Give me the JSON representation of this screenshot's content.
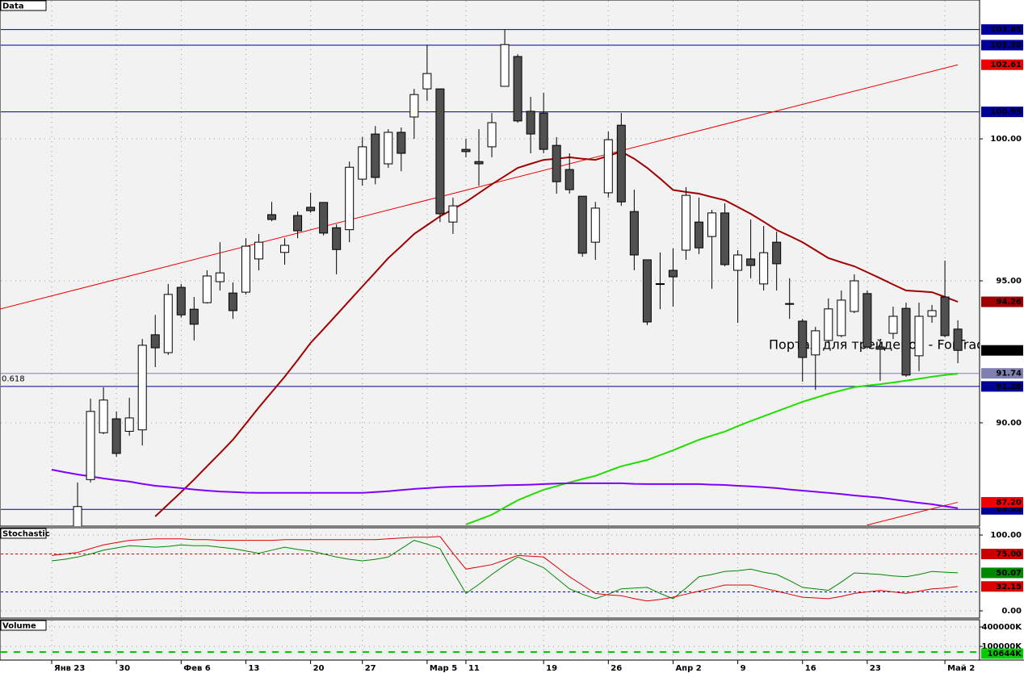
{
  "chart_data": [
    {
      "type": "candlestick",
      "title": "Data",
      "categories": [
        "Янв 23",
        null,
        null,
        null,
        null,
        "30",
        null,
        null,
        null,
        null,
        "Фев 6",
        null,
        null,
        null,
        null,
        "13",
        null,
        null,
        null,
        null,
        "20",
        null,
        null,
        null,
        "27",
        null,
        null,
        null,
        null,
        "Мар 5",
        null,
        null,
        "11",
        null,
        null,
        null,
        null,
        null,
        "19",
        null,
        null,
        null,
        null,
        "26",
        null,
        null,
        null,
        null,
        "Апр 2",
        null,
        null,
        null,
        null,
        "9",
        null,
        null,
        null,
        null,
        "16",
        null,
        null,
        null,
        null,
        "23",
        null,
        null,
        null,
        null,
        null,
        "Май 2",
        null
      ],
      "open": [
        null,
        null,
        86.2,
        88.0,
        89.65,
        90.14,
        89.7,
        89.75,
        93.1,
        92.47,
        94.77,
        94.0,
        94.23,
        94.97,
        94.57,
        94.6,
        95.77,
        97.33,
        96.0,
        97.3,
        97.59,
        97.76,
        96.87,
        96.8,
        98.58,
        100.17,
        99.12,
        100.23,
        100.77,
        101.76,
        101.76,
        97.07,
        99.63,
        99.2,
        99.72,
        101.85,
        102.9,
        100.97,
        100.91,
        99.77,
        98.92,
        97.98,
        96.36,
        98.1,
        100.48,
        97.44,
        95.74,
        94.9,
        95.37,
        96.08,
        97.07,
        96.56,
        97.39,
        95.37,
        95.77,
        94.89,
        96.36,
        94.2,
        93.58,
        92.39,
        92.9,
        93.07,
        93.92,
        94.55,
        92.67,
        93.15,
        94.03,
        92.36,
        93.75,
        94.43,
        93.3
      ],
      "high": [
        null,
        null,
        87.9,
        90.85,
        91.25,
        90.4,
        90.88,
        92.95,
        93.8,
        94.89,
        94.89,
        94.43,
        95.37,
        96.36,
        94.94,
        96.5,
        96.65,
        97.78,
        96.5,
        97.44,
        98.1,
        97.76,
        96.99,
        99.2,
        100.06,
        100.45,
        100.34,
        100.4,
        101.76,
        103.3,
        101.76,
        97.93,
        100.0,
        100.34,
        100.91,
        103.85,
        102.98,
        101.48,
        101.62,
        100.06,
        99.49,
        97.98,
        97.78,
        100.26,
        100.91,
        98.21,
        95.74,
        96.0,
        96.14,
        98.3,
        97.93,
        97.5,
        97.73,
        96.08,
        97.16,
        96.93,
        96.73,
        95.09,
        93.66,
        93.38,
        94.38,
        94.66,
        95.23,
        94.66,
        92.95,
        94.09,
        94.23,
        94.23,
        94.15,
        95.71,
        93.61
      ],
      "low": [
        null,
        null,
        85.9,
        87.9,
        89.6,
        88.8,
        89.54,
        89.2,
        91.96,
        92.39,
        93.7,
        92.9,
        94.2,
        94.66,
        93.66,
        94.52,
        95.37,
        97.1,
        95.57,
        96.5,
        97.4,
        96.6,
        95.23,
        96.36,
        98.35,
        98.4,
        98.98,
        98.86,
        100.0,
        101.34,
        97.07,
        96.65,
        99.35,
        98.35,
        99.35,
        101.85,
        100.57,
        99.49,
        99.49,
        98.07,
        98.07,
        95.85,
        95.74,
        97.93,
        97.64,
        95.37,
        93.44,
        94.0,
        94.09,
        95.74,
        95.94,
        94.72,
        95.51,
        93.52,
        95.09,
        94.66,
        94.66,
        93.66,
        91.45,
        91.16,
        92.81,
        93.01,
        93.86,
        92.61,
        91.48,
        92.95,
        91.62,
        91.82,
        93.52,
        93.01,
        92.1
      ],
      "close": [
        null,
        null,
        87.05,
        90.4,
        90.8,
        88.92,
        90.17,
        92.73,
        92.64,
        94.52,
        93.8,
        93.47,
        95.17,
        95.28,
        93.95,
        96.22,
        96.36,
        97.16,
        96.25,
        96.76,
        97.47,
        96.68,
        96.1,
        99.0,
        99.72,
        98.64,
        100.23,
        99.49,
        101.56,
        102.3,
        97.36,
        97.64,
        99.55,
        99.12,
        100.57,
        103.32,
        100.63,
        100.17,
        99.63,
        98.49,
        98.21,
        95.97,
        97.56,
        99.97,
        97.78,
        95.91,
        93.55,
        94.88,
        95.14,
        98.01,
        96.16,
        97.39,
        95.57,
        95.91,
        95.54,
        95.99,
        95.6,
        94.18,
        92.3,
        93.24,
        94.01,
        94.32,
        95.0,
        92.67,
        92.59,
        93.75,
        91.68,
        93.75,
        93.95,
        93.07,
        92.55
      ],
      "last_label": "92.55",
      "ylim": [
        86.36,
        104.89
      ],
      "yticks": [
        {
          "value": 90,
          "label": "90.00"
        },
        {
          "value": 95,
          "label": "95.00"
        },
        {
          "value": 100,
          "label": "100.00"
        }
      ],
      "series": [
        {
          "color": "#a00000",
          "last_label": "94.26",
          "values": [
            null,
            null,
            null,
            null,
            null,
            null,
            null,
            null,
            86.7,
            87.13,
            87.56,
            88.0,
            88.47,
            88.93,
            89.4,
            89.97,
            90.54,
            91.08,
            91.62,
            92.21,
            92.81,
            93.3,
            93.8,
            94.3,
            94.8,
            95.3,
            95.8,
            96.22,
            96.65,
            96.96,
            97.27,
            97.52,
            97.78,
            98.09,
            98.4,
            98.69,
            98.98,
            99.12,
            99.26,
            99.3,
            99.35,
            99.3,
            99.26,
            99.4,
            99.55,
            99.3,
            98.98,
            98.6,
            98.2,
            98.13,
            98.07,
            97.95,
            97.84,
            97.6,
            97.36,
            97.08,
            96.79,
            96.58,
            96.36,
            96.08,
            95.8,
            95.65,
            95.51,
            95.3,
            95.09,
            94.87,
            94.66,
            94.63,
            94.6,
            94.43,
            94.26
          ]
        },
        {
          "color": "#22dd00",
          "values": [
            null,
            null,
            null,
            null,
            null,
            null,
            null,
            null,
            null,
            null,
            null,
            null,
            null,
            null,
            null,
            null,
            null,
            null,
            null,
            null,
            null,
            null,
            null,
            null,
            null,
            null,
            null,
            null,
            null,
            null,
            null,
            null,
            86.42,
            86.59,
            86.76,
            87.02,
            87.27,
            87.46,
            87.64,
            87.77,
            87.9,
            88.02,
            88.13,
            88.3,
            88.47,
            88.58,
            88.69,
            88.86,
            89.03,
            89.22,
            89.4,
            89.55,
            89.69,
            89.88,
            90.06,
            90.23,
            90.4,
            90.57,
            90.74,
            90.88,
            91.02,
            91.14,
            91.25,
            91.31,
            91.36,
            91.42,
            91.48,
            91.55,
            91.62,
            91.68,
            91.73
          ]
        },
        {
          "color": "#8000ff",
          "values": [
            88.35,
            88.26,
            88.18,
            88.11,
            88.04,
            87.98,
            87.93,
            87.85,
            87.78,
            87.74,
            87.7,
            87.65,
            87.61,
            87.58,
            87.56,
            87.54,
            87.53,
            87.53,
            87.53,
            87.53,
            87.53,
            87.53,
            87.53,
            87.53,
            87.53,
            87.56,
            87.59,
            87.63,
            87.67,
            87.7,
            87.73,
            87.75,
            87.76,
            87.77,
            87.78,
            87.8,
            87.81,
            87.82,
            87.84,
            87.86,
            87.87,
            87.87,
            87.87,
            87.87,
            87.87,
            87.85,
            87.84,
            87.84,
            87.84,
            87.84,
            87.84,
            87.82,
            87.81,
            87.78,
            87.76,
            87.73,
            87.7,
            87.65,
            87.61,
            87.57,
            87.53,
            87.49,
            87.44,
            87.4,
            87.36,
            87.3,
            87.24,
            87.18,
            87.13,
            87.06,
            86.99
          ]
        }
      ],
      "trendlines": [
        {
          "color": "#ee0000",
          "start": [
            0,
            94.47
          ],
          "end": [
            70,
            102.61
          ],
          "label": "102.61"
        },
        {
          "color": "#ee0000",
          "start": [
            63,
            86.4
          ],
          "end": [
            70,
            87.2
          ],
          "label": "87.20"
        }
      ],
      "levels": [
        {
          "value": 103.85,
          "label": "103.85",
          "color": "#000099"
        },
        {
          "value": 103.3,
          "label": "103.30",
          "color": "#000099"
        },
        {
          "value": 100.95,
          "label": "100.95",
          "color": "#000099"
        },
        {
          "value": 91.74,
          "label": "91.74",
          "color": "#8080b0",
          "name": "0.618"
        },
        {
          "value": 91.28,
          "label": "91.28",
          "color": "#000099"
        },
        {
          "value": 86.95,
          "label": "86.95",
          "color": "#000099"
        }
      ],
      "watermark": "Портал для трейдеров - ForTrader.ru"
    },
    {
      "type": "line",
      "title": "Stochastic",
      "ylim": [
        -9.6,
        109.6
      ],
      "yticks": [
        {
          "value": 100,
          "label": "100.00"
        },
        {
          "value": 0,
          "label": "0.00"
        }
      ],
      "levels": [
        {
          "value": 75,
          "label": "75.00",
          "color": "#cc0000"
        },
        {
          "value": 25,
          "color": "#0000cc"
        }
      ],
      "series": [
        {
          "color": "#008800",
          "last_label": "50.07",
          "values": [
            66,
            68,
            71,
            75,
            80,
            83,
            86,
            85,
            84,
            85,
            87,
            86,
            86,
            84,
            82,
            79,
            76,
            80,
            84,
            81,
            79,
            75,
            71,
            68,
            66,
            68,
            71,
            82,
            93,
            88,
            82,
            52,
            23,
            35,
            48,
            60,
            71,
            64,
            57,
            43,
            29,
            22,
            16,
            22,
            29,
            30,
            31,
            23,
            16,
            30,
            45,
            48,
            52,
            53,
            55,
            51,
            48,
            40,
            31,
            29,
            27,
            38,
            50,
            49,
            48,
            46,
            45,
            48,
            52,
            51,
            50.07
          ]
        },
        {
          "color": "#dd0000",
          "last_label": "32.15",
          "values": [
            73,
            75,
            77,
            82,
            87,
            90,
            93,
            94,
            95,
            95,
            95,
            94,
            94,
            93,
            93,
            93,
            93,
            93,
            94,
            94,
            94,
            94,
            94,
            94,
            94,
            94,
            95,
            96,
            97,
            97,
            98,
            76,
            55,
            58,
            61,
            67,
            73,
            72,
            71,
            58,
            45,
            34,
            23,
            21,
            20,
            16,
            13,
            15,
            18,
            22,
            26,
            30,
            34,
            34,
            34,
            30,
            26,
            22,
            18,
            17,
            16,
            19,
            23,
            25,
            27,
            25,
            23,
            26,
            29,
            30,
            32.15
          ]
        }
      ]
    },
    {
      "type": "volume",
      "title": "Volume",
      "log": true,
      "ylim": [
        37600000,
        672000000
      ],
      "yticks": [
        {
          "value": 400000000,
          "label": "400000K"
        },
        {
          "value": 100000000,
          "label": "100000K"
        }
      ],
      "last_label": "10644K",
      "color": "#00cc00"
    }
  ]
}
